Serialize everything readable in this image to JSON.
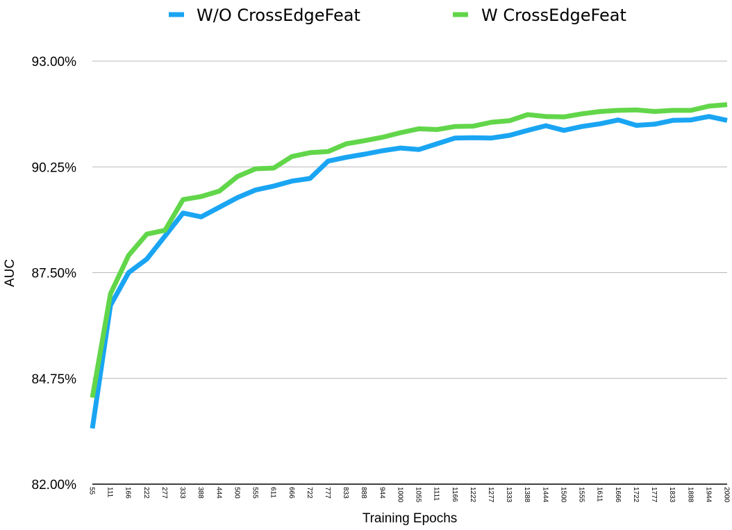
{
  "chart_data": {
    "type": "line",
    "title": "",
    "xlabel": "Training Epochs",
    "ylabel": "AUC",
    "ylim": [
      82.0,
      93.0
    ],
    "y_ticks": [
      "82.00%",
      "84.75%",
      "87.50%",
      "90.25%",
      "93.00%"
    ],
    "y_tick_values": [
      82.0,
      84.75,
      87.5,
      90.25,
      93.0
    ],
    "grid": "horizontal",
    "legend_position": "top",
    "categories": [
      "55",
      "111",
      "166",
      "222",
      "277",
      "333",
      "388",
      "444",
      "500",
      "555",
      "611",
      "666",
      "722",
      "777",
      "833",
      "888",
      "944",
      "1000",
      "1055",
      "1111",
      "1166",
      "1222",
      "1277",
      "1333",
      "1388",
      "1444",
      "1500",
      "1555",
      "1611",
      "1666",
      "1722",
      "1777",
      "1833",
      "1888",
      "1944",
      "2000"
    ],
    "series": [
      {
        "name": "W/O CrossEdgeFeat",
        "color": "#1aa5f3",
        "values": [
          83.45,
          86.65,
          87.5,
          87.85,
          88.45,
          89.05,
          88.95,
          89.2,
          89.45,
          89.65,
          89.75,
          89.88,
          89.95,
          90.4,
          90.5,
          90.58,
          90.67,
          90.74,
          90.7,
          90.85,
          91.0,
          91.01,
          91.0,
          91.07,
          91.2,
          91.32,
          91.2,
          91.3,
          91.37,
          91.47,
          91.33,
          91.36,
          91.46,
          91.47,
          91.56,
          91.46
        ],
        "values_note": "AUC %"
      },
      {
        "name": "W CrossEdgeFeat",
        "color": "#62d64a",
        "values": [
          84.25,
          86.95,
          87.95,
          88.5,
          88.6,
          89.4,
          89.48,
          89.62,
          90.0,
          90.2,
          90.22,
          90.52,
          90.62,
          90.65,
          90.85,
          90.93,
          91.02,
          91.14,
          91.24,
          91.22,
          91.3,
          91.31,
          91.41,
          91.45,
          91.61,
          91.56,
          91.55,
          91.63,
          91.69,
          91.72,
          91.73,
          91.69,
          91.72,
          91.72,
          91.83,
          91.87
        ]
      }
    ]
  }
}
